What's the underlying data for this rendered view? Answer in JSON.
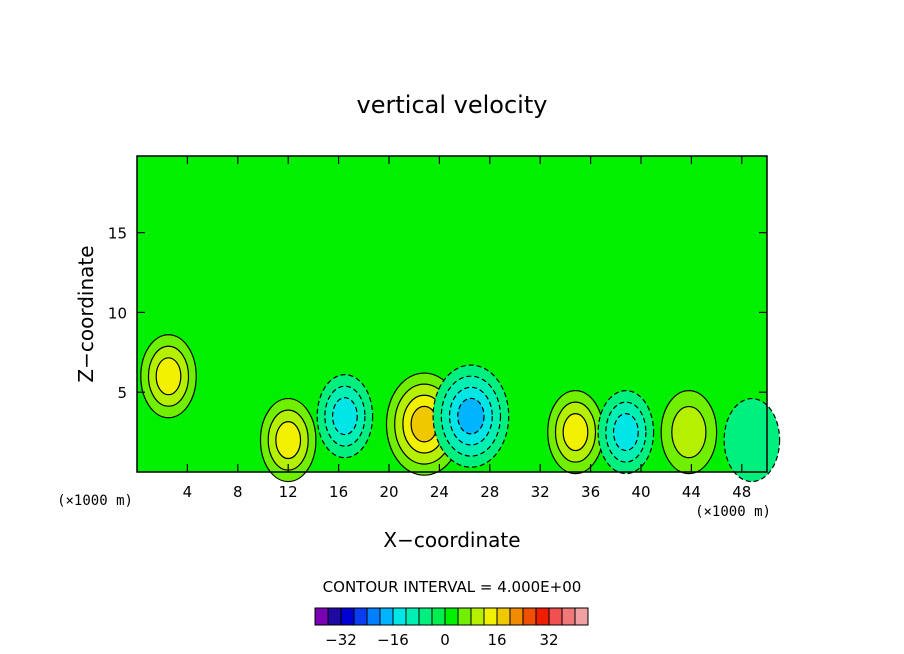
{
  "chart_data": {
    "type": "heatmap",
    "title": "vertical velocity",
    "xlabel": "X−coordinate",
    "ylabel": "Z−coordinate",
    "x_unit": "(×1000 m)",
    "y_unit": "(×1000 m)",
    "xlim": [
      0,
      50
    ],
    "ylim": [
      0,
      19.8
    ],
    "x_ticks": [
      4,
      8,
      12,
      16,
      20,
      24,
      28,
      32,
      36,
      40,
      44,
      48
    ],
    "y_ticks": [
      5,
      10,
      15
    ],
    "contour_interval_label": "CONTOUR INTERVAL = 4.000E+00",
    "contour_interval": 4,
    "colorbar": {
      "ticks": [
        -32,
        -16,
        0,
        16,
        32
      ],
      "tick_labels": [
        "−32",
        "−16",
        "0",
        "16",
        "32"
      ],
      "colors": [
        "#7a00b4",
        "#1e0aa0",
        "#0000d2",
        "#0a3cf0",
        "#0080ff",
        "#00b4ff",
        "#00e6e6",
        "#00f0b4",
        "#00f080",
        "#00f050",
        "#00f000",
        "#70f000",
        "#b4f000",
        "#f0f000",
        "#f0c800",
        "#f08c00",
        "#f05000",
        "#f01e00",
        "#f05050",
        "#f07878",
        "#f0a0a0"
      ]
    },
    "features": [
      {
        "x": 2.5,
        "z": 6.0,
        "value": 12,
        "label": "updraft"
      },
      {
        "x": 12.0,
        "z": 2.0,
        "value": 12,
        "label": "updraft"
      },
      {
        "x": 16.5,
        "z": 3.5,
        "value": -12,
        "label": "downdraft"
      },
      {
        "x": 22.8,
        "z": 3.0,
        "value": 16,
        "label": "updraft"
      },
      {
        "x": 26.5,
        "z": 3.5,
        "value": -16,
        "label": "downdraft"
      },
      {
        "x": 34.8,
        "z": 2.5,
        "value": 12,
        "label": "updraft"
      },
      {
        "x": 38.8,
        "z": 2.5,
        "value": -12,
        "label": "downdraft"
      },
      {
        "x": 43.8,
        "z": 2.5,
        "value": 8,
        "label": "updraft"
      },
      {
        "x": 48.8,
        "z": 2.0,
        "value": -4,
        "label": "downdraft"
      }
    ]
  }
}
